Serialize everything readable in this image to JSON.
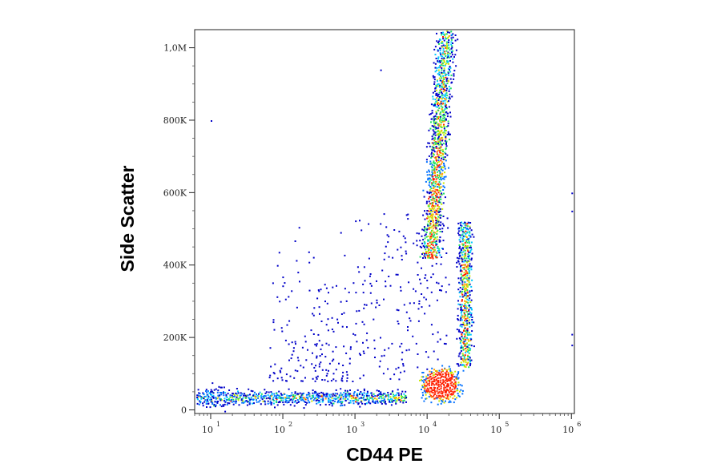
{
  "chart_data": {
    "type": "scatter",
    "subtype": "flow-cytometry-density-dot-plot",
    "xlabel": "CD44 PE",
    "ylabel": "Side Scatter",
    "x_scale": "log",
    "xlim": [
      6,
      1100000
    ],
    "ylim": [
      -10000,
      1050000
    ],
    "x_ticks": [
      {
        "value": 10,
        "base": "10",
        "exp": "1"
      },
      {
        "value": 100,
        "base": "10",
        "exp": "2"
      },
      {
        "value": 1000,
        "base": "10",
        "exp": "3"
      },
      {
        "value": 10000,
        "base": "10",
        "exp": "4"
      },
      {
        "value": 100000,
        "base": "10",
        "exp": "5"
      },
      {
        "value": 1000000,
        "base": "10",
        "exp": "6"
      }
    ],
    "y_ticks": [
      {
        "value": 0,
        "label": "0"
      },
      {
        "value": 200000,
        "label": "200K"
      },
      {
        "value": 400000,
        "label": "400K"
      },
      {
        "value": 600000,
        "label": "600K"
      },
      {
        "value": 800000,
        "label": "800K"
      },
      {
        "value": 1000000,
        "label": "1,0M"
      }
    ],
    "grid": false,
    "legend": "none",
    "color_scale": [
      "#0000c8",
      "#0070ff",
      "#00c8ff",
      "#20e060",
      "#c8e800",
      "#ffa000",
      "#ff2000"
    ],
    "series": [
      {
        "population": "baseline-low-ssc",
        "x_log10_range": [
          0.8,
          3.7
        ],
        "y_center": 35000,
        "y_spread": 15000,
        "density": "medium"
      },
      {
        "population": "main-cluster",
        "x_center": 15000,
        "y_center": 70000,
        "density": "peak"
      },
      {
        "population": "high-ssc-column",
        "x_center": 13000,
        "y_range": [
          420000,
          1050000
        ],
        "y_peak": 650000,
        "density": "high"
      },
      {
        "population": "mid-ssc-column",
        "x_center": 35000,
        "y_range": [
          120000,
          520000
        ],
        "y_peak": 300000,
        "density": "medium"
      },
      {
        "population": "scattered-events",
        "x_log10_range": [
          1.8,
          4.3
        ],
        "y_range": [
          80000,
          560000
        ],
        "density": "sparse"
      }
    ]
  }
}
